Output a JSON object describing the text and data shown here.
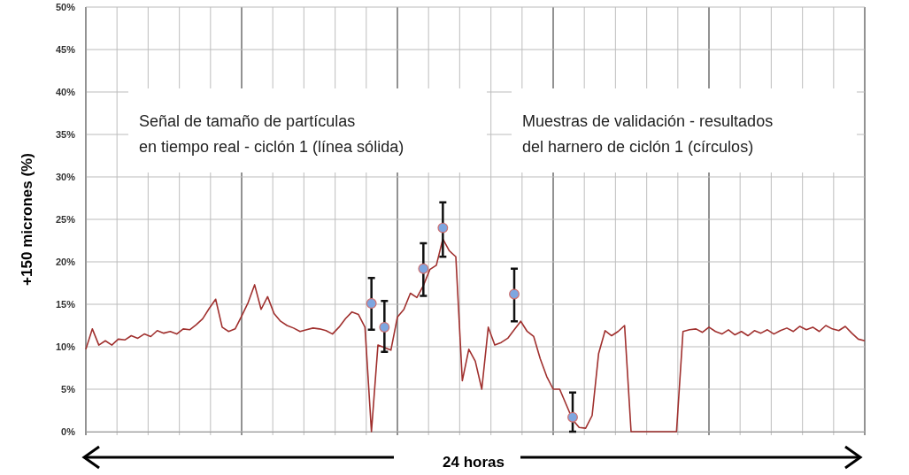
{
  "chart_data": {
    "type": "line",
    "ylabel": "+150 micrones (%)",
    "annotations": [
      "Señal de tamaño de partículas\nen tiempo real - ciclón 1 (línea sólida)",
      "Muestras de validación - resultados\ndel harnero de ciclón 1 (círculos)",
      "24 horas"
    ],
    "categories": [
      null,
      null,
      null,
      null,
      null,
      null,
      null,
      null,
      null,
      null,
      null,
      null,
      null,
      null,
      null,
      null,
      null,
      null,
      null,
      null,
      null,
      null,
      null,
      null,
      null,
      null,
      null,
      null,
      null,
      null,
      null,
      null,
      null,
      null,
      null,
      null,
      null,
      null,
      null,
      null,
      null,
      null,
      null,
      null,
      null,
      null,
      null,
      null,
      null,
      null,
      null,
      null,
      null,
      null,
      null,
      null,
      null,
      null,
      null,
      null,
      null,
      null,
      null,
      null,
      null,
      null,
      null,
      null,
      null,
      null,
      null,
      null,
      null,
      null,
      null,
      null,
      null,
      null,
      null,
      null,
      null,
      null,
      null,
      null,
      null,
      null,
      null,
      null,
      null,
      null,
      null,
      null,
      null,
      null,
      null,
      null,
      null,
      null,
      null,
      null,
      null,
      null,
      null,
      null,
      null,
      null,
      null,
      null,
      null,
      null,
      null,
      null,
      null,
      null,
      null,
      null,
      null,
      null,
      null,
      null,
      null
    ],
    "ylim": [
      0,
      50
    ],
    "yticks": [
      {
        "value": 0,
        "label": "0%"
      },
      {
        "value": 5,
        "label": "5%"
      },
      {
        "value": 10,
        "label": "10%"
      },
      {
        "value": 15,
        "label": "15%"
      },
      {
        "value": 20,
        "label": "20%"
      },
      {
        "value": 25,
        "label": "25%"
      },
      {
        "value": 30,
        "label": "30%"
      },
      {
        "value": 35,
        "label": "35%"
      },
      {
        "value": 40,
        "label": "40%"
      },
      {
        "value": 45,
        "label": "45%"
      },
      {
        "value": 50,
        "label": "50%"
      }
    ],
    "grid": true,
    "tick_labels": "y",
    "series": [
      {
        "color": "#a0302e",
        "values": [
          9.7,
          12.1,
          10.2,
          10.7,
          10.2,
          10.9,
          10.8,
          11.3,
          11.0,
          11.5,
          11.2,
          11.9,
          11.6,
          11.8,
          11.5,
          12.1,
          12.0,
          12.6,
          13.3,
          14.5,
          15.6,
          12.3,
          11.8,
          12.1,
          13.6,
          15.2,
          17.3,
          14.4,
          15.9,
          13.9,
          13.0,
          12.5,
          12.2,
          11.8,
          12.0,
          12.2,
          12.1,
          11.9,
          11.5,
          12.3,
          13.3,
          14.1,
          13.8,
          12.3,
          0,
          10.2,
          9.9,
          9.6,
          13.5,
          14.4,
          16.3,
          15.8,
          17.2,
          19.1,
          19.6,
          22.7,
          21.3,
          20.6,
          6.0,
          9.7,
          8.3,
          5.0,
          12.3,
          10.2,
          10.5,
          11.0,
          12.0,
          13.0,
          11.8,
          11.2,
          8.6,
          6.5,
          5.0,
          5.0,
          3.2,
          1.4,
          0.5,
          0.4,
          1.9,
          9.2,
          11.9,
          11.3,
          11.8,
          12.5,
          0,
          0,
          0,
          0,
          0,
          0,
          0,
          0,
          11.8,
          12.0,
          12.1,
          11.7,
          12.3,
          11.8,
          11.5,
          12.0,
          11.4,
          11.8,
          11.3,
          11.9,
          11.6,
          12.0,
          11.5,
          11.9,
          12.2,
          11.8,
          12.4,
          12.0,
          12.3,
          11.8,
          12.5,
          12.1,
          11.9,
          12.4,
          11.6,
          10.9,
          10.7
        ]
      },
      {
        "type": "scatter",
        "marker": "circle",
        "color": "#7ea6e0",
        "values": [
          null,
          null,
          null,
          null,
          null,
          null,
          null,
          null,
          null,
          null,
          null,
          null,
          null,
          null,
          null,
          null,
          null,
          null,
          null,
          null,
          null,
          null,
          null,
          null,
          null,
          null,
          null,
          null,
          null,
          null,
          null,
          null,
          null,
          null,
          null,
          null,
          null,
          null,
          null,
          null,
          null,
          null,
          null,
          null,
          15.1,
          null,
          12.3,
          null,
          null,
          null,
          null,
          null,
          19.2,
          null,
          null,
          24.0,
          null,
          null,
          null,
          null,
          null,
          null,
          null,
          null,
          null,
          null,
          16.2,
          null,
          null,
          null,
          null,
          null,
          null,
          null,
          null,
          1.7,
          null,
          null,
          null,
          null,
          null,
          null,
          null,
          null,
          null,
          null,
          null,
          null,
          null,
          null,
          null,
          null,
          null,
          null,
          null,
          null,
          null,
          null,
          null,
          null,
          null,
          null,
          null,
          null,
          null,
          null,
          null,
          null,
          null,
          null,
          null,
          null,
          null,
          null,
          null,
          null,
          null,
          null,
          null,
          null,
          null
        ],
        "errors": [
          null,
          null,
          null,
          null,
          null,
          null,
          null,
          null,
          null,
          null,
          null,
          null,
          null,
          null,
          null,
          null,
          null,
          null,
          null,
          null,
          null,
          null,
          null,
          null,
          null,
          null,
          null,
          null,
          null,
          null,
          null,
          null,
          null,
          null,
          null,
          null,
          null,
          null,
          null,
          null,
          null,
          null,
          null,
          null,
          [
            12.0,
            18.1
          ],
          null,
          [
            9.4,
            15.4
          ],
          null,
          null,
          null,
          null,
          null,
          [
            16.0,
            22.2
          ],
          null,
          null,
          [
            20.6,
            27.0
          ],
          null,
          null,
          null,
          null,
          null,
          null,
          null,
          null,
          null,
          null,
          [
            13.0,
            19.2
          ],
          null,
          null,
          null,
          null,
          null,
          null,
          null,
          null,
          [
            0,
            4.6
          ],
          null,
          null,
          null,
          null,
          null,
          null,
          null,
          null,
          null,
          null,
          null,
          null,
          null,
          null,
          null,
          null,
          null,
          null,
          null,
          null,
          null,
          null,
          null,
          null,
          null,
          null,
          null,
          null,
          null,
          null,
          null,
          null,
          null,
          null,
          null,
          null,
          null,
          null,
          null,
          null,
          null,
          null,
          null,
          null,
          null
        ]
      }
    ]
  }
}
